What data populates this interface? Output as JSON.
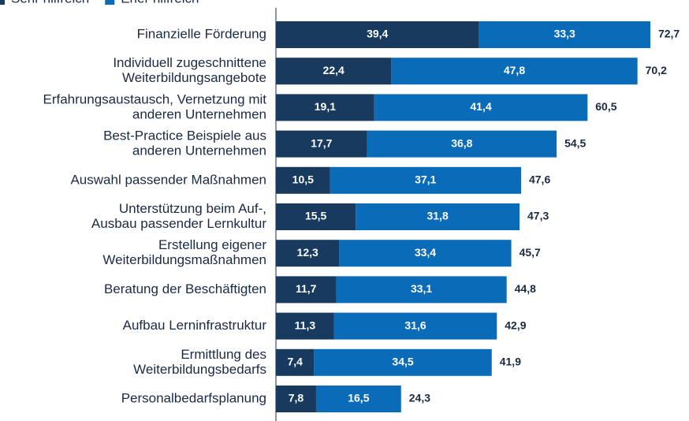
{
  "chart_data": {
    "type": "stacked_barh",
    "categories": [
      [
        "Finanzielle Förderung"
      ],
      [
        "Individuell zugeschnittene",
        "Weiterbildungsangebote"
      ],
      [
        "Erfahrungsaustausch, Vernetzung mit",
        "anderen Unternehmen"
      ],
      [
        "Best-Practice Beispiele aus",
        "anderen Unternehmen"
      ],
      [
        "Auswahl passender Maßnahmen"
      ],
      [
        "Unterstützung beim Auf-,",
        "Ausbau passender Lernkultur"
      ],
      [
        "Erstellung eigener",
        "Weiterbildungsmaßnahmen"
      ],
      [
        "Beratung der Beschäftigten"
      ],
      [
        "Aufbau Lerninfrastruktur"
      ],
      [
        "Ermittlung des",
        "Weiterbildungsbedarfs"
      ],
      [
        "Personalbedarfsplanung"
      ]
    ],
    "series": [
      {
        "name": "Sehr hilfreich",
        "color": "#173a5e",
        "values": [
          39.4,
          22.4,
          19.1,
          17.7,
          10.5,
          15.5,
          12.3,
          11.7,
          11.3,
          7.4,
          7.8
        ],
        "value_labels": [
          "39,4",
          "22,4",
          "19,1",
          "17,7",
          "10,5",
          "15,5",
          "12,3",
          "11,7",
          "11,3",
          "7,4",
          "7,8"
        ]
      },
      {
        "name": "Eher hilfreich",
        "color": "#0a6cb9",
        "values": [
          33.3,
          47.8,
          41.4,
          36.8,
          37.1,
          31.8,
          33.4,
          33.1,
          31.6,
          34.5,
          16.5
        ],
        "value_labels": [
          "33,3",
          "47,8",
          "41,4",
          "36,8",
          "37,1",
          "31,8",
          "33,4",
          "33,1",
          "31,6",
          "34,5",
          "16,5"
        ]
      }
    ],
    "totals": [
      72.7,
      70.2,
      60.5,
      54.5,
      47.6,
      47.3,
      45.7,
      44.8,
      42.9,
      41.9,
      24.3
    ],
    "total_labels": [
      "72,7",
      "70,2",
      "60,5",
      "54,5",
      "47,6",
      "47,3",
      "45,7",
      "44,8",
      "42,9",
      "41,9",
      "24,3"
    ],
    "xlim": [
      0,
      75
    ]
  }
}
